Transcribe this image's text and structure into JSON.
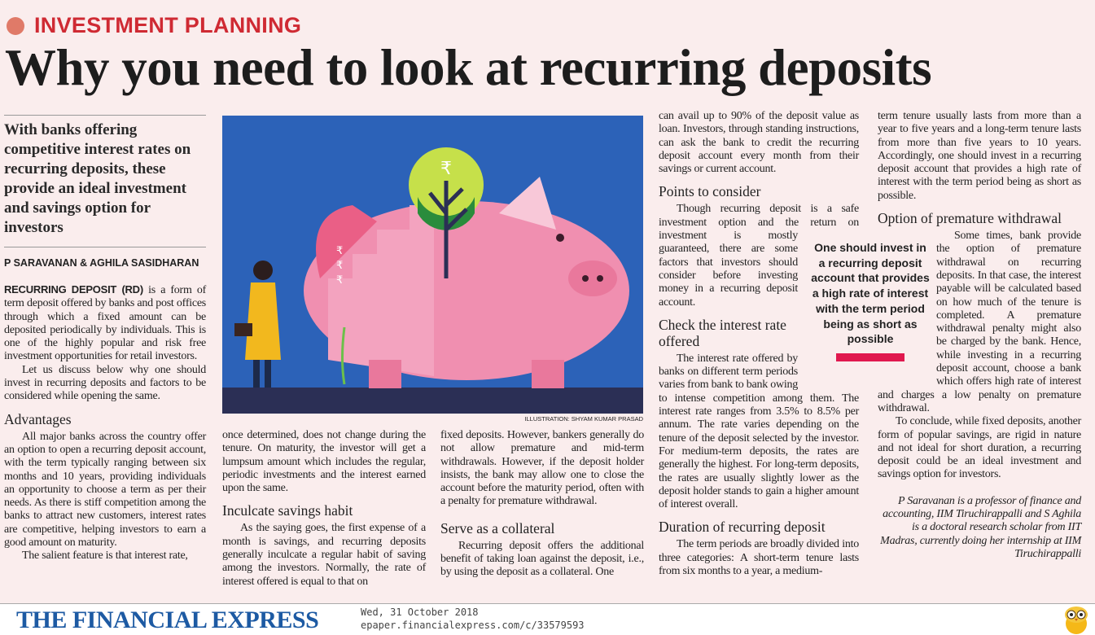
{
  "kicker": "INVESTMENT PLANNING",
  "title": "Why you need to look at recurring deposits",
  "deck": "With banks offering competitive interest rates on recurring deposits, these provide an ideal investment and savings option for investors",
  "byline": "P SARAVANAN & AGHILA SASIDHARAN",
  "illustration_credit": "ILLUSTRATION: SHYAM KUMAR PRASAD",
  "col1": {
    "lead": "RECURRING DEPOSIT (RD)",
    "p1": " is a form of term deposit offered by banks and post offices through which a fixed amount can be deposited periodically by individuals. This is one of the highly popular and risk free investment opportunities for retail investors.",
    "p2": "Let us discuss below why one should invest in recurring deposits and factors to be considered while opening the same.",
    "h1": "Advantages",
    "p3": "All major banks across the country offer an option to open a recurring deposit account, with the term typically ranging between six months and 10 years, providing individuals an opportunity to choose a term as per their needs. As there is stiff competition among the banks to attract new customers, interest rates are competitive, helping investors to earn a good amount on maturity.",
    "p4": "The salient feature is that interest rate,"
  },
  "col2": {
    "p1": "once determined, does not change during the tenure. On maturity, the investor will get a lumpsum amount which includes the regular, periodic investments and the interest earned upon the same.",
    "h1": "Inculcate savings habit",
    "p2": "As the saying goes, the first expense of a month is savings, and recurring deposits generally inculcate a regular habit of saving among the investors. Normally, the rate of interest offered is equal to that on"
  },
  "col3": {
    "p1": "fixed deposits. However, bankers generally do not allow premature and mid-term withdrawals. However, if the deposit holder insists, the bank may allow one to close the account before the maturity period, often with a penalty for premature withdrawal.",
    "h1": "Serve as a collateral",
    "p2": "Recurring deposit offers the additional benefit of taking loan against the deposit, i.e., by using the deposit as a collateral. One"
  },
  "col4": {
    "p1": "can avail up to 90% of the deposit value as loan. Investors, through standing instructions, can ask the bank to credit the recurring deposit account every month from their savings or current account.",
    "h1": "Points to consider",
    "p2": "Though recurring deposit is a safe investment option and the return on investment is mostly guaranteed, there are some factors that investors should consider before investing money in a recurring deposit account.",
    "h2": "Check the interest rate offered",
    "p3": "The interest rate offered by banks on different term periods varies from bank to bank owing to intense competition among them. The interest rate ranges from 3.5% to 8.5% per annum. The rate varies depending on the tenure of the deposit selected by the investor. For medium-term deposits, the rates are generally the highest. For long-term deposits, the rates are usually slightly lower as the deposit holder stands to gain a higher amount of interest overall.",
    "h3": "Duration of recurring deposit",
    "p4": "The term periods are broadly divided into three categories: A short-term tenure lasts from six months to a year, a medium-"
  },
  "col5": {
    "p1": "term tenure usually lasts from more than a year to five years and a long-term tenure lasts from more than five years to 10 years. Accordingly, one should invest in a recurring deposit account that provides a high rate of interest with the term period being as short as possible.",
    "h1": "Option of premature withdrawal",
    "p2": "Some times, bank provide the option of premature withdrawal on recurring deposits. In that case, the interest payable will be calculated based on how much of the tenure is completed. A premature withdrawal penalty might also be charged by the bank. Hence, while investing in a recurring deposit account, choose a bank which offers high rate of interest and charges a low penalty on premature withdrawal.",
    "p3": "To conclude, while fixed deposits, another form of popular savings, are rigid in nature and not ideal for short duration, a recurring deposit could be an ideal investment and savings option for investors.",
    "bio": "P Saravanan is a professor of finance and accounting, IIM Tiruchirappalli and S Aghila is a doctoral research scholar from IIT Madras, currently doing her internship at IIM Tiruchirappalli"
  },
  "pull_quote": "One should invest in a recurring deposit account that provides a high rate of interest with the term period being as short as possible",
  "footer": {
    "logo": "THE FINANCIAL EXPRESS",
    "date": "Wed, 31 October 2018",
    "url": "epaper.financialexpress.com/c/33579593"
  },
  "colors": {
    "kicker": "#cf2a33",
    "accent_bar": "#e0184e",
    "logo": "#1d5aa3",
    "background": "#faeded"
  },
  "icons": [
    "bullet-dot-icon",
    "owl-mascot-icon",
    "rupee-icon"
  ]
}
